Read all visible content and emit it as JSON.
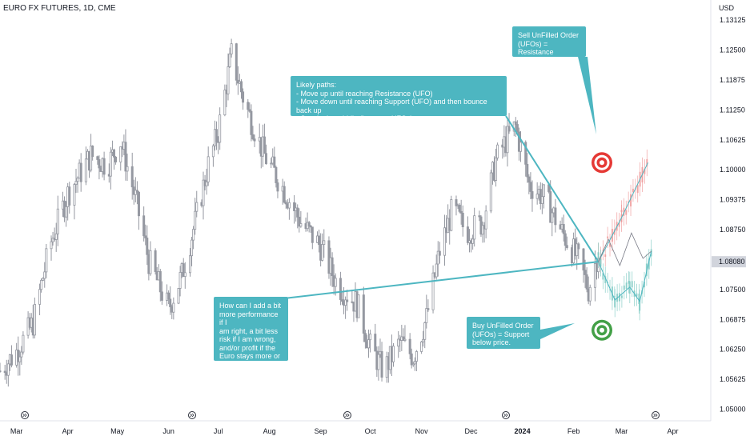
{
  "header": {
    "symbol": "EURO FX FUTURES, 1D, CME"
  },
  "price_axis": {
    "currency": "USD",
    "current_price": "1.08080",
    "current_value": 1.0808
  },
  "callouts": {
    "sell_ufo": "Sell UnFilled Order\n(UFOs) = Resistance\nabove price.",
    "likely_paths": "Likely paths:\n- Move up until reaching Resistance (UFO)\n- Move down until reaching Support (UFO) and then bounce back up\n- Stay in the middle (between UFOs)",
    "question": "How can I add a bit\nmore performance if I\nam right, a bit less\nrisk if I am wrong,\nand/or profit if the\nEuro stays more or\nless where it is?",
    "buy_ufo": "Buy UnFilled Order\n(UFOs) = Support\nbelow price."
  },
  "colors": {
    "candle": "#9598a1",
    "callout": "#4db6c1",
    "resistance_target": "#e53935",
    "support_target": "#43a047",
    "projection_up": "#ef9a9a",
    "projection_down": "#80cbc4",
    "current_price_tag": "#d1d4dc"
  },
  "chart_data": {
    "type": "candlestick",
    "title": "EURO FX FUTURES, 1D, CME",
    "ylabel": "USD",
    "ylim": [
      1.045,
      1.137
    ],
    "y_ticks": [
      "1.13125",
      "1.12500",
      "1.11875",
      "1.11250",
      "1.10625",
      "1.10000",
      "1.09375",
      "1.08750",
      "1.08080",
      "1.07500",
      "1.06875",
      "1.06250",
      "1.05625",
      "1.05000"
    ],
    "y_tick_values": [
      1.13125,
      1.125,
      1.11875,
      1.1125,
      1.10625,
      1.1,
      1.09375,
      1.0875,
      1.0808,
      1.075,
      1.06875,
      1.0625,
      1.05625,
      1.05
    ],
    "x_ticks": [
      "Mar",
      "Apr",
      "May",
      "Jun",
      "Jul",
      "Aug",
      "Sep",
      "Oct",
      "Nov",
      "Dec",
      "2024",
      "Feb",
      "Mar",
      "Apr"
    ],
    "x_tick_days": [
      0,
      31,
      61,
      92,
      122,
      153,
      184,
      214,
      245,
      275,
      306,
      337,
      366,
      397
    ],
    "x_range_days": [
      -10,
      420
    ],
    "close_anchors": [
      {
        "day": -10,
        "close": 1.058
      },
      {
        "day": 0,
        "close": 1.062
      },
      {
        "day": 10,
        "close": 1.068
      },
      {
        "day": 20,
        "close": 1.084
      },
      {
        "day": 31,
        "close": 1.095
      },
      {
        "day": 45,
        "close": 1.103
      },
      {
        "day": 55,
        "close": 1.101
      },
      {
        "day": 63,
        "close": 1.106
      },
      {
        "day": 72,
        "close": 1.094
      },
      {
        "day": 80,
        "close": 1.081
      },
      {
        "day": 92,
        "close": 1.071
      },
      {
        "day": 100,
        "close": 1.078
      },
      {
        "day": 108,
        "close": 1.089
      },
      {
        "day": 116,
        "close": 1.101
      },
      {
        "day": 122,
        "close": 1.108
      },
      {
        "day": 130,
        "close": 1.124
      },
      {
        "day": 138,
        "close": 1.114
      },
      {
        "day": 150,
        "close": 1.103
      },
      {
        "day": 160,
        "close": 1.097
      },
      {
        "day": 172,
        "close": 1.089
      },
      {
        "day": 184,
        "close": 1.084
      },
      {
        "day": 194,
        "close": 1.076
      },
      {
        "day": 206,
        "close": 1.072
      },
      {
        "day": 214,
        "close": 1.063
      },
      {
        "day": 222,
        "close": 1.058
      },
      {
        "day": 232,
        "close": 1.064
      },
      {
        "day": 240,
        "close": 1.061
      },
      {
        "day": 248,
        "close": 1.069
      },
      {
        "day": 256,
        "close": 1.083
      },
      {
        "day": 264,
        "close": 1.092
      },
      {
        "day": 272,
        "close": 1.087
      },
      {
        "day": 282,
        "close": 1.089
      },
      {
        "day": 290,
        "close": 1.102
      },
      {
        "day": 296,
        "close": 1.106
      },
      {
        "day": 302,
        "close": 1.109
      },
      {
        "day": 310,
        "close": 1.097
      },
      {
        "day": 320,
        "close": 1.094
      },
      {
        "day": 330,
        "close": 1.087
      },
      {
        "day": 340,
        "close": 1.081
      },
      {
        "day": 346,
        "close": 1.075
      },
      {
        "day": 352,
        "close": 1.083
      }
    ],
    "last_close": 1.0808,
    "resistance_ufo": 1.1015,
    "support_ufo": 1.0665,
    "projection_paths": {
      "up": [
        {
          "day": 352,
          "value": 1.0808
        },
        {
          "day": 366,
          "value": 1.09
        },
        {
          "day": 382,
          "value": 1.1015
        }
      ],
      "down": [
        {
          "day": 352,
          "value": 1.0808
        },
        {
          "day": 362,
          "value": 1.0728
        },
        {
          "day": 371,
          "value": 1.0755
        },
        {
          "day": 377,
          "value": 1.0725
        },
        {
          "day": 384,
          "value": 1.083
        }
      ],
      "middle": [
        {
          "day": 352,
          "value": 1.0808
        },
        {
          "day": 358,
          "value": 1.0855
        },
        {
          "day": 365,
          "value": 1.08
        },
        {
          "day": 372,
          "value": 1.0868
        },
        {
          "day": 379,
          "value": 1.0815
        },
        {
          "day": 384,
          "value": 1.083
        }
      ]
    }
  }
}
